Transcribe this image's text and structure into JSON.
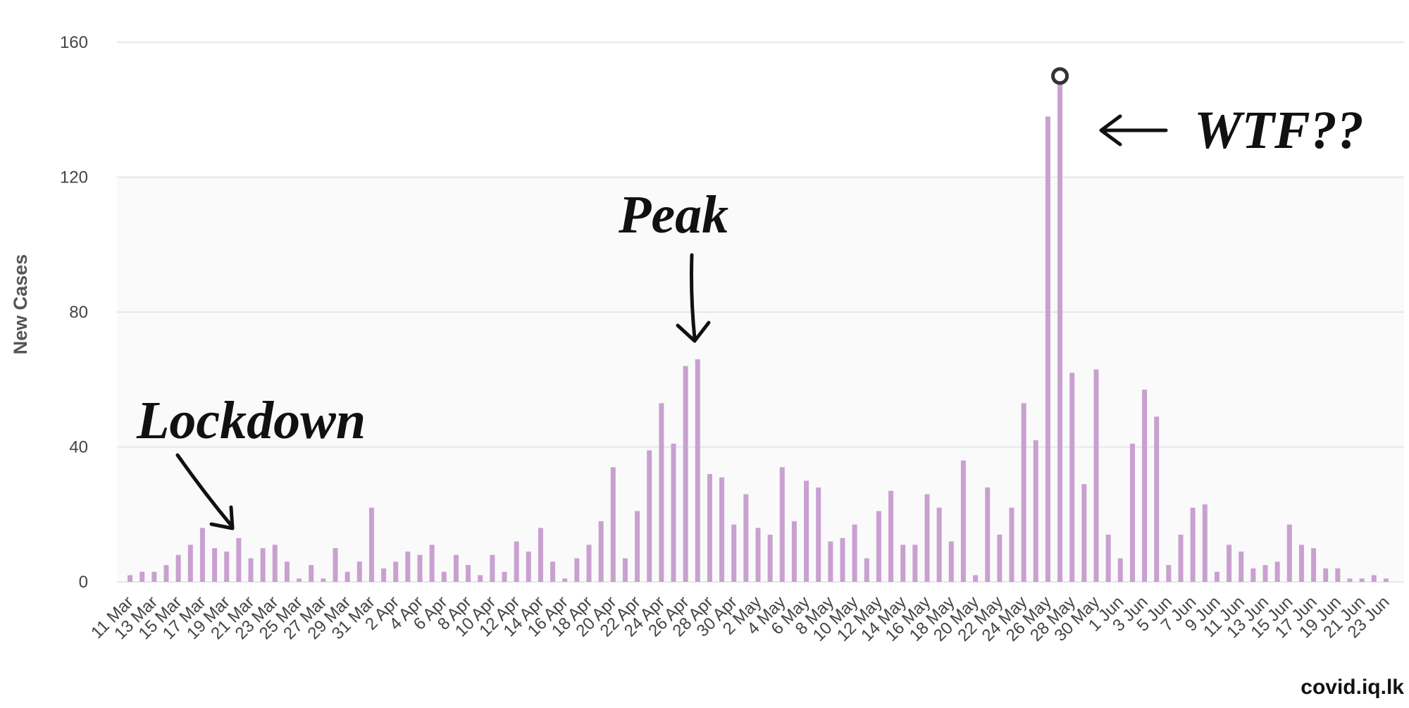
{
  "chart_data": {
    "type": "bar",
    "y_axis_label": "New Cases",
    "source": "covid.iq.lk",
    "categories": [
      "11 Mar",
      null,
      "13 Mar",
      null,
      "15 Mar",
      null,
      "17 Mar",
      null,
      "19 Mar",
      null,
      "21 Mar",
      null,
      "23 Mar",
      null,
      "25 Mar",
      null,
      "27 Mar",
      null,
      "29 Mar",
      null,
      "31 Mar",
      null,
      "2 Apr",
      null,
      "4 Apr",
      null,
      "6 Apr",
      null,
      "8 Apr",
      null,
      "10 Apr",
      null,
      "12 Apr",
      null,
      "14 Apr",
      null,
      "16 Apr",
      null,
      "18 Apr",
      null,
      "20 Apr",
      null,
      "22 Apr",
      null,
      "24 Apr",
      null,
      "26 Apr",
      null,
      "28 Apr",
      null,
      "30 Apr",
      null,
      "2 May",
      null,
      "4 May",
      null,
      "6 May",
      null,
      "8 May",
      null,
      "10 May",
      null,
      "12 May",
      null,
      "14 May",
      null,
      "16 May",
      null,
      "18 May",
      null,
      "20 May",
      null,
      "22 May",
      null,
      "24 May",
      null,
      "26 May",
      null,
      "28 May",
      null,
      "30 May",
      null,
      "1 Jun",
      null,
      "3 Jun",
      null,
      "5 Jun",
      null,
      "7 Jun",
      null,
      "9 Jun",
      null,
      "11 Jun",
      null,
      "13 Jun",
      null,
      "15 Jun",
      null,
      "17 Jun",
      null,
      "19 Jun",
      null,
      "21 Jun",
      null,
      "23 Jun"
    ],
    "values": [
      2,
      3,
      3,
      5,
      8,
      11,
      16,
      10,
      9,
      13,
      7,
      10,
      11,
      6,
      1,
      5,
      1,
      10,
      3,
      6,
      22,
      4,
      6,
      9,
      8,
      11,
      3,
      8,
      5,
      2,
      8,
      3,
      12,
      9,
      16,
      6,
      1,
      7,
      11,
      18,
      34,
      7,
      21,
      39,
      53,
      41,
      64,
      66,
      32,
      31,
      17,
      26,
      16,
      14,
      34,
      18,
      30,
      28,
      12,
      13,
      17,
      7,
      21,
      27,
      11,
      11,
      26,
      22,
      12,
      36,
      2,
      28,
      14,
      22,
      53,
      42,
      138,
      150,
      62,
      29,
      63,
      14,
      7,
      41,
      57,
      49,
      5,
      14,
      22,
      23,
      3,
      11,
      9,
      4,
      5,
      6,
      17,
      11,
      10,
      4,
      4,
      1,
      1,
      2,
      1
    ],
    "color": "#c9a0d0",
    "ylim": [
      0,
      160
    ],
    "yticks": [
      0,
      40,
      80,
      120,
      160
    ],
    "grid": true,
    "plot_band": [
      0,
      120
    ],
    "annotations": [
      "Lockdown",
      "Peak",
      "WTF??"
    ]
  }
}
